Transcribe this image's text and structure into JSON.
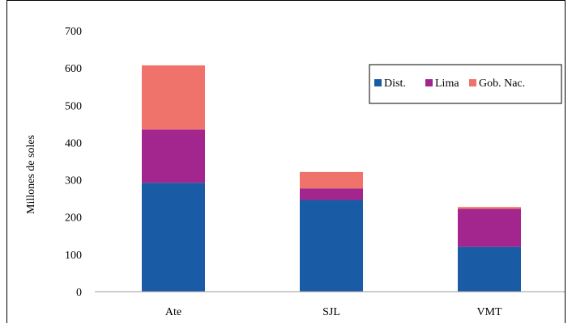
{
  "chart_data": {
    "type": "bar",
    "stacked": true,
    "categories": [
      "Ate",
      "SJL",
      "VMT"
    ],
    "series": [
      {
        "name": "Dist.",
        "color": "#1a5ba6",
        "values": [
          292,
          246,
          120
        ]
      },
      {
        "name": "Lima",
        "color": "#a3268f",
        "values": [
          143,
          31,
          102
        ]
      },
      {
        "name": "Gob. Nac.",
        "color": "#ef726b",
        "values": [
          172,
          44,
          5
        ]
      }
    ],
    "ylabel": "Millones de soles",
    "ylim": [
      0,
      700
    ],
    "yticks": [
      0,
      100,
      200,
      300,
      400,
      500,
      600,
      700
    ],
    "grid": false,
    "legend_position": "top-right"
  }
}
